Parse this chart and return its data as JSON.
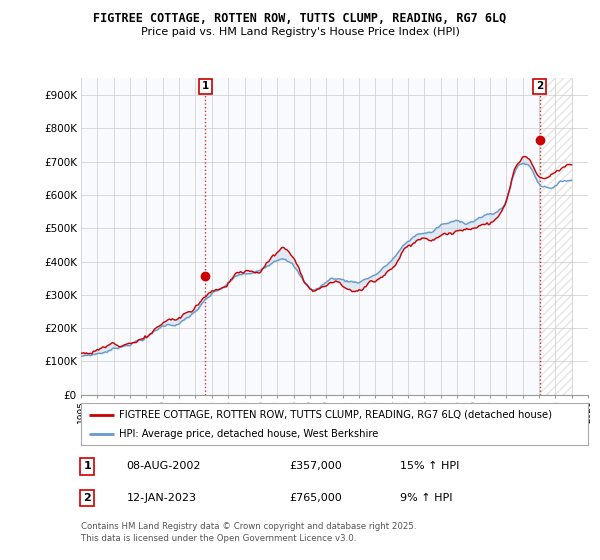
{
  "title": "FIGTREE COTTAGE, ROTTEN ROW, TUTTS CLUMP, READING, RG7 6LQ",
  "subtitle": "Price paid vs. HM Land Registry's House Price Index (HPI)",
  "legend_line1": "FIGTREE COTTAGE, ROTTEN ROW, TUTTS CLUMP, READING, RG7 6LQ (detached house)",
  "legend_line2": "HPI: Average price, detached house, West Berkshire",
  "footnote": "Contains HM Land Registry data © Crown copyright and database right 2025.\nThis data is licensed under the Open Government Licence v3.0.",
  "point1_label": "1",
  "point1_date": "08-AUG-2002",
  "point1_price": "£357,000",
  "point1_hpi": "15% ↑ HPI",
  "point2_label": "2",
  "point2_date": "12-JAN-2023",
  "point2_price": "£765,000",
  "point2_hpi": "9% ↑ HPI",
  "red_color": "#cc0000",
  "blue_color": "#6699cc",
  "fill_color": "#ddeeff",
  "background_color": "#ffffff",
  "ylim_min": 0,
  "ylim_max": 950000,
  "yticks": [
    0,
    100000,
    200000,
    300000,
    400000,
    500000,
    600000,
    700000,
    800000,
    900000
  ],
  "ytick_labels": [
    "£0",
    "£100K",
    "£200K",
    "£300K",
    "£400K",
    "£500K",
    "£600K",
    "£700K",
    "£800K",
    "£900K"
  ],
  "x_start_year": 1995,
  "x_end_year": 2026,
  "purchase1_year": 2002.604,
  "purchase1_value": 357000,
  "purchase2_year": 2023.038,
  "purchase2_value": 765000
}
